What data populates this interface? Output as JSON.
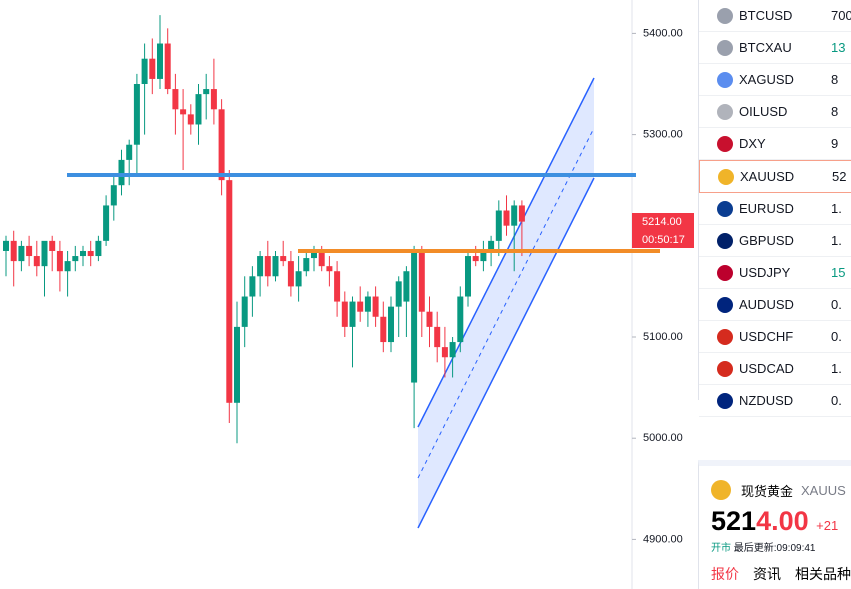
{
  "chart_data": {
    "type": "candlestick",
    "open": [
      5185,
      5195,
      5175,
      5190,
      5180,
      5170,
      5195,
      5185,
      5165,
      5175,
      5180,
      5185,
      5180,
      5195,
      5230,
      5250,
      5275,
      5290,
      5350,
      5375,
      5355,
      5390,
      5345,
      5325,
      5320,
      5310,
      5340,
      5345,
      5325,
      5255,
      5035,
      5110,
      5140,
      5160,
      5180,
      5160,
      5180,
      5175,
      5150,
      5165,
      5178,
      5185,
      5170,
      5165,
      5135,
      5110,
      5135,
      5125,
      5140,
      5120,
      5095,
      5130,
      5135,
      5055,
      5185,
      5125,
      5110,
      5090,
      5080,
      5095,
      5140,
      5180,
      5175,
      5185,
      5195,
      5225,
      5210,
      5230
    ],
    "high": [
      5200,
      5205,
      5195,
      5200,
      5195,
      5190,
      5200,
      5195,
      5185,
      5190,
      5190,
      5195,
      5200,
      5240,
      5260,
      5285,
      5295,
      5360,
      5390,
      5395,
      5418,
      5405,
      5360,
      5345,
      5330,
      5350,
      5360,
      5375,
      5335,
      5265,
      5135,
      5160,
      5170,
      5185,
      5195,
      5185,
      5195,
      5185,
      5180,
      5185,
      5190,
      5190,
      5180,
      5175,
      5145,
      5140,
      5150,
      5145,
      5150,
      5135,
      5140,
      5160,
      5170,
      5190,
      5190,
      5140,
      5125,
      5110,
      5100,
      5150,
      5185,
      5190,
      5195,
      5200,
      5235,
      5240,
      5235,
      5235
    ],
    "low": [
      5160,
      5150,
      5165,
      5170,
      5160,
      5140,
      5165,
      5145,
      5140,
      5165,
      5170,
      5170,
      5175,
      5190,
      5215,
      5240,
      5250,
      5260,
      5300,
      5340,
      5345,
      5340,
      5300,
      5265,
      5300,
      5290,
      5315,
      5310,
      5240,
      5015,
      4995,
      5090,
      5120,
      5140,
      5150,
      5155,
      5170,
      5140,
      5135,
      5160,
      5165,
      5165,
      5150,
      5120,
      5100,
      5070,
      5115,
      5110,
      5110,
      5085,
      5085,
      5100,
      5100,
      5010,
      5100,
      5090,
      5075,
      5060,
      5060,
      5085,
      5130,
      5170,
      5165,
      5170,
      5180,
      5200,
      5165,
      5180
    ],
    "close": [
      5195,
      5175,
      5190,
      5180,
      5170,
      5195,
      5185,
      5165,
      5175,
      5180,
      5185,
      5180,
      5195,
      5230,
      5250,
      5275,
      5290,
      5350,
      5375,
      5355,
      5390,
      5345,
      5325,
      5320,
      5310,
      5340,
      5345,
      5325,
      5255,
      5035,
      5110,
      5140,
      5160,
      5180,
      5160,
      5180,
      5175,
      5150,
      5165,
      5178,
      5185,
      5170,
      5165,
      5135,
      5110,
      5135,
      5125,
      5140,
      5120,
      5095,
      5130,
      5155,
      5165,
      5185,
      5125,
      5110,
      5090,
      5080,
      5095,
      5140,
      5180,
      5175,
      5185,
      5195,
      5225,
      5210,
      5230,
      5214
    ],
    "up_color": "#089981",
    "down_color": "#f23645",
    "ylim": [
      4851,
      5433
    ],
    "yticks": [
      5400,
      5300,
      5100,
      5000,
      4900
    ],
    "tick_labels": [
      "5400.00",
      "5300.00",
      "5100.00",
      "5000.00",
      "4900.00"
    ],
    "price_label": "5214.00",
    "countdown": "00:50:17"
  },
  "watchlist": [
    {
      "symbol": "BTCUSD",
      "value": "700"
    },
    {
      "symbol": "BTCXAU",
      "value": "13"
    },
    {
      "symbol": "XAGUSD",
      "value": "8"
    },
    {
      "symbol": "OILUSD",
      "value": "8"
    },
    {
      "symbol": "DXY",
      "value": "9"
    },
    {
      "symbol": "XAUUSD",
      "value": "52"
    },
    {
      "symbol": "EURUSD",
      "value": "1."
    },
    {
      "symbol": "GBPUSD",
      "value": "1."
    },
    {
      "symbol": "USDJPY",
      "value": "15"
    },
    {
      "symbol": "AUDUSD",
      "value": "0."
    },
    {
      "symbol": "USDCHF",
      "value": "0."
    },
    {
      "symbol": "USDCAD",
      "value": "1."
    },
    {
      "symbol": "NZDUSD",
      "value": "0."
    }
  ],
  "detail": {
    "name": "现货黄金",
    "symbol": "XAUUS",
    "price_main": "521",
    "price_tail": "4.00",
    "change": "+21",
    "status": "开市",
    "updated": "最后更新:09:09:41",
    "tabs": [
      "报价",
      "资讯",
      "相关品种"
    ]
  }
}
